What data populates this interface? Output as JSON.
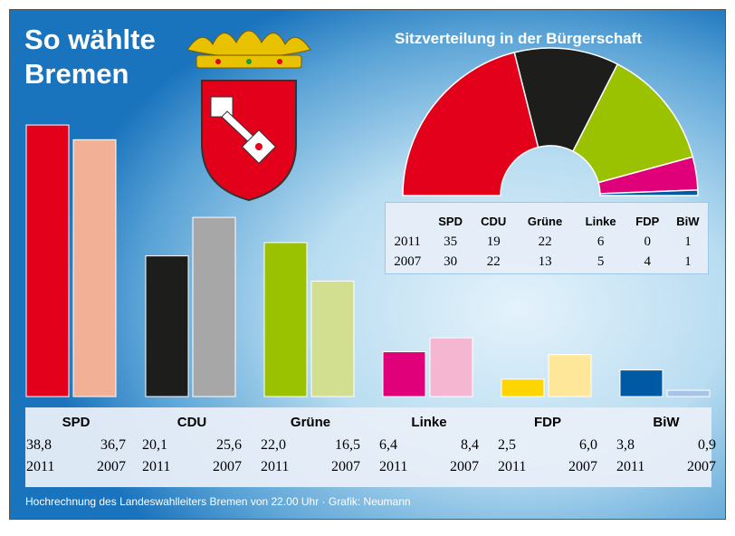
{
  "title_line1": "So wählte",
  "title_line2": "Bremen",
  "colors": {
    "SPD": [
      "#e2001a",
      "#f2b096"
    ],
    "CDU": [
      "#1d1d1b",
      "#a7a7a7"
    ],
    "Grüne": [
      "#9bc200",
      "#d3df90"
    ],
    "Linke": [
      "#e0007a",
      "#f4b6d0"
    ],
    "FDP": [
      "#ffd500",
      "#ffe79a"
    ],
    "BiW": [
      "#0059a3",
      "#a8c3e6"
    ]
  },
  "seat_chart": {
    "title": "Sitzverteilung in der Bürgerschaft",
    "parties": [
      "SPD",
      "CDU",
      "Grüne",
      "Linke",
      "FDP",
      "BiW"
    ],
    "years": [
      "2011",
      "2007"
    ],
    "seats": {
      "2011": [
        35,
        19,
        22,
        6,
        0,
        1
      ],
      "2007": [
        30,
        22,
        13,
        5,
        4,
        1
      ]
    }
  },
  "chart_data": {
    "type": "bar",
    "title": "So wählte Bremen",
    "categories": [
      "SPD",
      "CDU",
      "Grüne",
      "Linke",
      "FDP",
      "BiW"
    ],
    "series": [
      {
        "name": "2011",
        "values": [
          38.8,
          20.1,
          22.0,
          6.4,
          2.5,
          3.8
        ]
      },
      {
        "name": "2007",
        "values": [
          36.7,
          25.6,
          16.5,
          8.4,
          6.0,
          0.9
        ]
      }
    ],
    "value_labels": {
      "2011": [
        "38,8",
        "20,1",
        "22,0",
        "6,4",
        "2,5",
        "3,8"
      ],
      "2007": [
        "36,7",
        "25,6",
        "16,5",
        "8,4",
        "6,0",
        "0,9"
      ]
    },
    "xlabel": "",
    "ylabel": "%",
    "ylim": [
      0,
      40
    ]
  },
  "footer": "Hochrechnung des Landeswahlleiters Bremen von 22.00 Uhr · Grafik: Neumann"
}
